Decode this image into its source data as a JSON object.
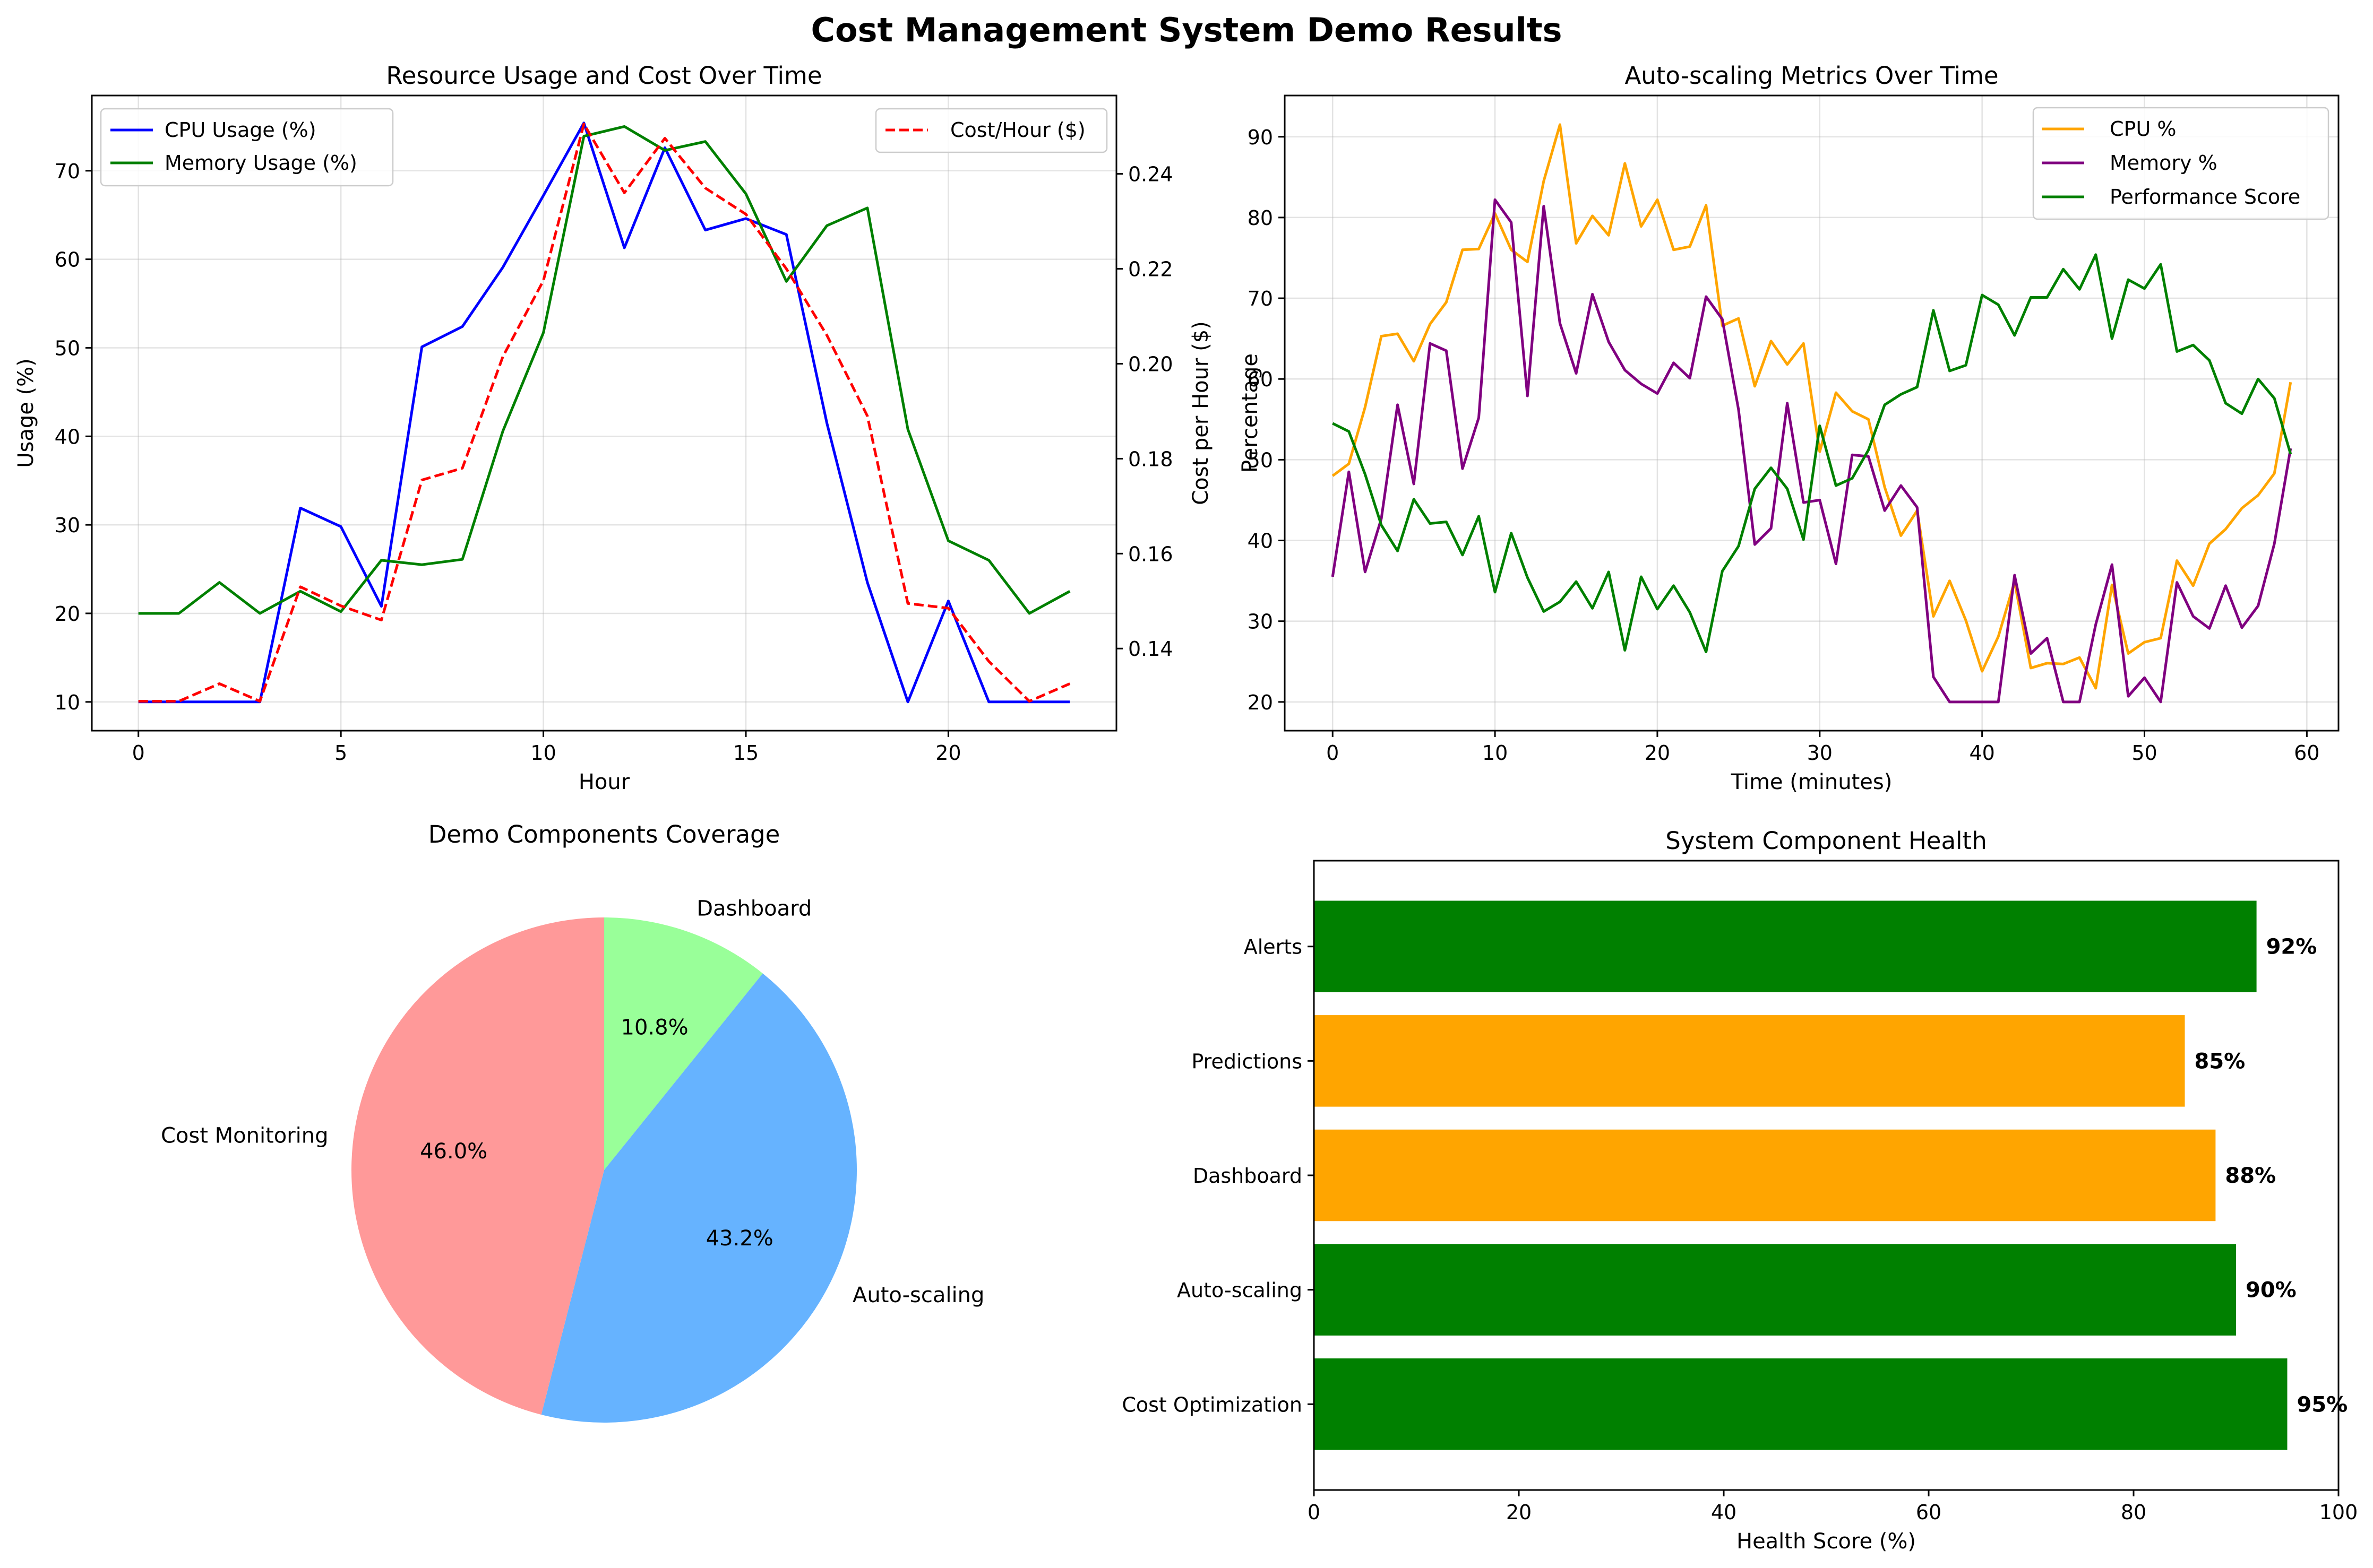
{
  "figure": {
    "title": "Cost Management System Demo Results"
  },
  "chart_data": [
    {
      "type": "line",
      "title": "Resource Usage and Cost Over Time",
      "xlabel": "Hour",
      "ylabel": "Usage (%)",
      "ylabel_right": "Cost per Hour ($)",
      "xlim": [
        -1.15,
        24.15
      ],
      "ylim": [
        6.75,
        78.5
      ],
      "ylim_right": [
        0.1227,
        0.2565
      ],
      "xticks": [
        0,
        5,
        10,
        15,
        20
      ],
      "yticks": [
        10,
        20,
        30,
        40,
        50,
        60,
        70
      ],
      "yticks_right": [
        0.14,
        0.16,
        0.18,
        0.2,
        0.22,
        0.24
      ],
      "yticks_right_labels": [
        "0.14",
        "0.16",
        "0.18",
        "0.20",
        "0.22",
        "0.24"
      ],
      "grid": true,
      "legend_left": "upper-left",
      "legend_right": "upper-right",
      "x": [
        0,
        1,
        2,
        3,
        4,
        5,
        6,
        7,
        8,
        9,
        10,
        11,
        12,
        13,
        14,
        15,
        16,
        17,
        18,
        19,
        20,
        21,
        22,
        23
      ],
      "series": [
        {
          "name": "CPU Usage (%)",
          "color": "#0000ff",
          "axis": "left",
          "style": "solid",
          "values": [
            10,
            10,
            10,
            10,
            31.9,
            29.8,
            20.8,
            50.1,
            52.4,
            59.1,
            67.2,
            75.4,
            61.3,
            72.6,
            63.3,
            64.6,
            62.8,
            41.5,
            23.5,
            10,
            21.4,
            10,
            10,
            10
          ]
        },
        {
          "name": "Memory Usage (%)",
          "color": "#008000",
          "axis": "left",
          "style": "solid",
          "values": [
            20,
            20,
            23.5,
            20,
            22.5,
            20.2,
            26,
            25.5,
            26.1,
            40.6,
            51.7,
            73.9,
            75,
            72.3,
            73.3,
            67.4,
            57.5,
            63.8,
            65.8,
            40.8,
            28.2,
            26,
            20,
            22.5
          ]
        },
        {
          "name": "Cost/Hour ($)",
          "color": "#ff0000",
          "axis": "right",
          "style": "dashed",
          "values": [
            0.1289,
            0.1289,
            0.1326,
            0.1289,
            0.153,
            0.149,
            0.146,
            0.1755,
            0.178,
            0.2015,
            0.2175,
            0.2505,
            0.236,
            0.2475,
            0.237,
            0.2315,
            0.22,
            0.206,
            0.189,
            0.1495,
            0.1485,
            0.1373,
            0.1289,
            0.1326
          ]
        }
      ]
    },
    {
      "type": "line",
      "title": "Auto-scaling Metrics Over Time",
      "xlabel": "Time (minutes)",
      "ylabel": "Percentage",
      "xlim": [
        -2.95,
        61.95
      ],
      "ylim": [
        16.44,
        95.11
      ],
      "xticks": [
        0,
        10,
        20,
        30,
        40,
        50,
        60
      ],
      "yticks": [
        20,
        30,
        40,
        50,
        60,
        70,
        80,
        90
      ],
      "grid": true,
      "legend": "upper-right",
      "x": [
        0,
        1,
        2,
        3,
        4,
        5,
        6,
        7,
        8,
        9,
        10,
        11,
        12,
        13,
        14,
        15,
        16,
        17,
        18,
        19,
        20,
        21,
        22,
        23,
        24,
        25,
        26,
        27,
        28,
        29,
        30,
        31,
        32,
        33,
        34,
        35,
        36,
        37,
        38,
        39,
        40,
        41,
        42,
        43,
        44,
        45,
        46,
        47,
        48,
        49,
        50,
        51,
        52,
        53,
        54,
        55,
        56,
        57,
        58,
        59
      ],
      "series": [
        {
          "name": "CPU %",
          "color": "#ffa500",
          "values": [
            48,
            49.5,
            56.5,
            65.3,
            65.6,
            62.2,
            66.8,
            69.5,
            76,
            76.1,
            80.5,
            76,
            74.5,
            84.5,
            91.5,
            76.8,
            80.2,
            77.8,
            86.7,
            78.9,
            82.2,
            76,
            76.4,
            81.5,
            66.6,
            67.5,
            59.1,
            64.7,
            61.8,
            64.4,
            51,
            58.3,
            56,
            55,
            46.6,
            40.6,
            43.7,
            30.6,
            35,
            30.1,
            23.8,
            28.1,
            34.9,
            24.2,
            24.8,
            24.7,
            25.5,
            21.7,
            34.5,
            26,
            27.4,
            27.9,
            37.5,
            34.4,
            39.6,
            41.4,
            44,
            45.6,
            48.3,
            59.6
          ]
        },
        {
          "name": "Memory %",
          "color": "#800080",
          "values": [
            35.5,
            48.5,
            36.1,
            42.7,
            56.8,
            47,
            64.4,
            63.5,
            48.9,
            55.2,
            82.2,
            79.4,
            57.9,
            81.4,
            66.9,
            60.7,
            70.5,
            64.6,
            61.1,
            59.4,
            58.2,
            62,
            60.1,
            70.2,
            67.4,
            56.2,
            39.5,
            41.5,
            57,
            44.7,
            45,
            37.1,
            50.6,
            50.4,
            43.7,
            46.8,
            44.1,
            23.1,
            20,
            20,
            20,
            20,
            35.7,
            26,
            27.9,
            20,
            20,
            29.6,
            37,
            20.7,
            23,
            20,
            34.8,
            30.6,
            29.1,
            34.4,
            29.2,
            31.9,
            39.6,
            51.4
          ]
        },
        {
          "name": "Performance Score",
          "color": "#008000",
          "values": [
            54.5,
            53.5,
            48.2,
            41.9,
            38.7,
            45.1,
            42.1,
            42.3,
            38.2,
            43,
            33.6,
            40.9,
            35.4,
            31.2,
            32.4,
            34.9,
            31.6,
            36.1,
            26.4,
            35.5,
            31.5,
            34.4,
            31.1,
            26.2,
            36.2,
            39.3,
            46.4,
            49,
            46.4,
            40.1,
            54.2,
            46.8,
            47.7,
            51.2,
            56.8,
            58.1,
            59,
            68.5,
            61,
            61.7,
            70.4,
            69.2,
            65.4,
            70.1,
            70.1,
            73.6,
            71.1,
            75.4,
            65,
            72.3,
            71.2,
            74.2,
            63.4,
            64.2,
            62.3,
            57,
            55.7,
            60,
            57.6,
            50.7
          ]
        }
      ]
    },
    {
      "type": "pie",
      "title": "Demo Components Coverage",
      "start_angle_deg": 90,
      "counterclock": false,
      "slices": [
        {
          "label": "Dashboard",
          "value": 10.8,
          "pct_label": "10.8%",
          "color": "#99ff99"
        },
        {
          "label": "Auto-scaling",
          "value": 43.2,
          "pct_label": "43.2%",
          "color": "#66b3ff"
        },
        {
          "label": "Cost Monitoring",
          "value": 46.0,
          "pct_label": "46.0%",
          "color": "#ff9999"
        }
      ]
    },
    {
      "type": "bar",
      "orientation": "horizontal",
      "title": "System Component Health",
      "xlabel": "Health Score (%)",
      "xlim": [
        0,
        100
      ],
      "xticks": [
        0,
        20,
        40,
        60,
        80,
        100
      ],
      "categories": [
        "Alerts",
        "Predictions",
        "Dashboard",
        "Auto-scaling",
        "Cost Optimization"
      ],
      "values": [
        92,
        85,
        88,
        90,
        95
      ],
      "value_labels": [
        "92%",
        "85%",
        "88%",
        "90%",
        "95%"
      ],
      "colors": [
        "#008000",
        "#ffa500",
        "#ffa500",
        "#008000",
        "#008000"
      ]
    }
  ]
}
